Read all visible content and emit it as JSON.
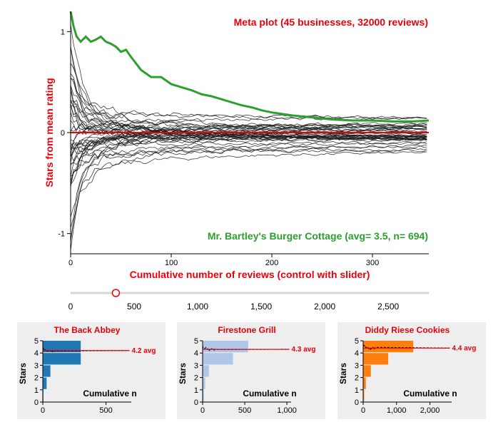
{
  "colors": {
    "red": "#e8000b",
    "green": "#2ca02c",
    "line": "#1a1a1a",
    "panel_bg": "#eeeeee",
    "blue": "#1f77b4",
    "lightblue": "#aec7e8",
    "orange": "#ff7f0e",
    "slider_track": "#d6d6d6"
  },
  "chart_data": [
    {
      "type": "line",
      "title": "Meta plot (45 businesses, 32000 reviews)",
      "xlabel": "Cumulative number of reviews (control with slider)",
      "ylabel": "Stars from mean rating",
      "xlim": [
        0,
        356
      ],
      "ylim": [
        -1.2,
        1.2
      ],
      "x_ticks": [
        0,
        100,
        200,
        300
      ],
      "y_ticks": [
        -1,
        0,
        1
      ],
      "series_count": 45,
      "reference_line": 0,
      "highlight": {
        "label": "Mr. Bartley's Burger Cottage (avg= 3.5, n= 694)",
        "x": [
          0,
          3,
          6,
          10,
          15,
          20,
          25,
          30,
          35,
          40,
          45,
          50,
          55,
          60,
          70,
          80,
          90,
          100,
          110,
          120,
          130,
          140,
          150,
          160,
          170,
          180,
          190,
          200,
          220,
          240,
          260,
          280,
          300,
          320,
          340,
          356
        ],
        "values": [
          1.2,
          1.05,
          0.95,
          0.9,
          0.95,
          0.9,
          0.92,
          0.95,
          0.9,
          0.88,
          0.85,
          0.8,
          0.82,
          0.75,
          0.62,
          0.55,
          0.55,
          0.48,
          0.45,
          0.42,
          0.38,
          0.36,
          0.33,
          0.3,
          0.27,
          0.25,
          0.22,
          0.2,
          0.17,
          0.15,
          0.13,
          0.12,
          0.12,
          0.11,
          0.11,
          0.12
        ]
      }
    },
    {
      "type": "bar",
      "title": "The Back Abbey",
      "avg_label": "4.2 avg",
      "avg": 4.2,
      "orientation": "horizontal",
      "stars": [
        1,
        2,
        3,
        4,
        5
      ],
      "values": [
        5,
        30,
        60,
        300,
        300
      ],
      "xlim": [
        0,
        700
      ],
      "x_ticks": [
        0,
        500
      ],
      "x_tick_labels": [
        "0",
        "500"
      ],
      "xlabel": "Cumulative n",
      "ylabel": "Stars",
      "color": "#1f77b4"
    },
    {
      "type": "bar",
      "title": "Firestone Grill",
      "avg_label": "4.3 avg",
      "avg": 4.3,
      "orientation": "horizontal",
      "stars": [
        1,
        2,
        3,
        4,
        5
      ],
      "values": [
        15,
        30,
        75,
        360,
        540
      ],
      "xlim": [
        0,
        1050
      ],
      "x_ticks": [
        0,
        500,
        1000
      ],
      "x_tick_labels": [
        "0",
        "500",
        "1,000"
      ],
      "xlabel": "Cumulative n",
      "ylabel": "Stars",
      "color": "#aec7e8"
    },
    {
      "type": "bar",
      "title": "Diddy Riese Cookies",
      "avg_label": "4.4 avg",
      "avg": 4.4,
      "orientation": "horizontal",
      "stars": [
        1,
        2,
        3,
        4,
        5
      ],
      "values": [
        30,
        80,
        230,
        750,
        1500
      ],
      "xlim": [
        0,
        2650
      ],
      "x_ticks": [
        0,
        1000,
        2000
      ],
      "x_tick_labels": [
        "0",
        "1,000",
        "2,000"
      ],
      "xlabel": "Cumulative n",
      "ylabel": "Stars",
      "color": "#ff7f0e"
    }
  ],
  "slider": {
    "value": 356,
    "min": 0,
    "max": 2600,
    "tick_values": [
      0,
      500,
      1000,
      1500,
      2000,
      2500
    ],
    "tick_labels": [
      "0",
      "500",
      "1,000",
      "1,500",
      "2,000",
      "2,500"
    ]
  }
}
